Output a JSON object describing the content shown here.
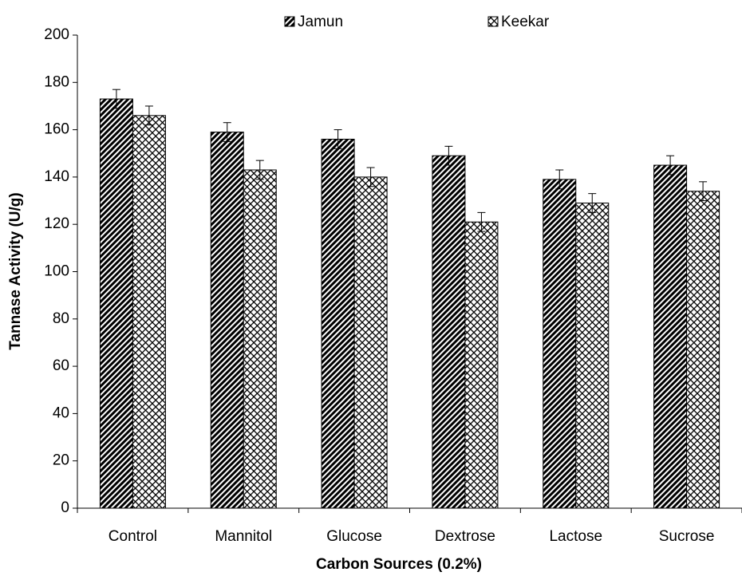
{
  "chart_data": {
    "type": "bar",
    "categories": [
      "Control",
      "Mannitol",
      "Glucose",
      "Dextrose",
      "Lactose",
      "Sucrose"
    ],
    "series": [
      {
        "name": "Jamun",
        "color": "#000000",
        "pattern": "diagonal",
        "values": [
          173,
          159,
          156,
          149,
          139,
          145
        ],
        "errors": [
          4,
          4,
          4,
          4,
          4,
          4
        ]
      },
      {
        "name": "Keekar",
        "color": "#000000",
        "pattern": "crosshatch",
        "values": [
          166,
          143,
          140,
          121,
          129,
          134
        ],
        "errors": [
          4,
          4,
          4,
          4,
          4,
          4
        ]
      }
    ],
    "xlabel": "Carbon Sources (0.2%)",
    "ylabel": "Tannase Activity (U/g)",
    "ylim": [
      0,
      200
    ],
    "yticks": [
      0,
      20,
      40,
      60,
      80,
      100,
      120,
      140,
      160,
      180,
      200
    ],
    "grid": false,
    "legend": "top"
  }
}
